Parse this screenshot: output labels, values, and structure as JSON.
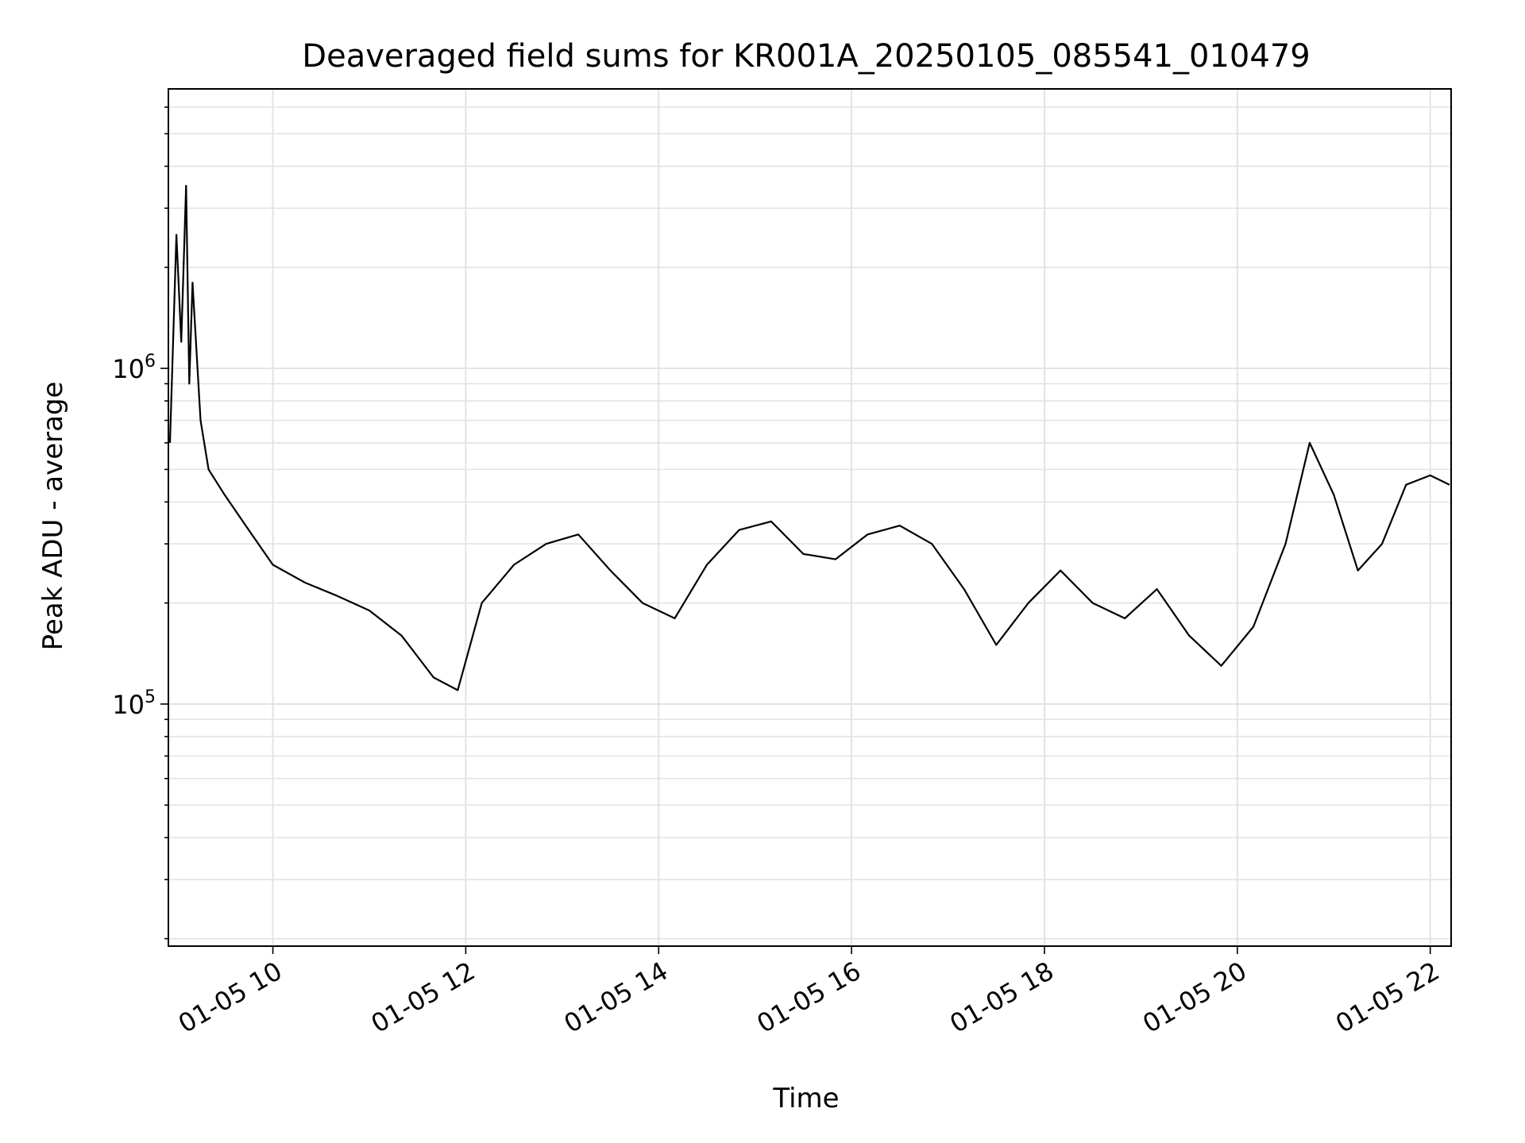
{
  "chart_data": {
    "type": "line",
    "title": "Deaveraged field sums for KR001A_20250105_085541_010479",
    "xlabel": "Time",
    "ylabel": "Peak ADU - average",
    "yscale": "log",
    "ylim": [
      19000,
      6800000
    ],
    "xlim": [
      "2025-01-05 08:55",
      "2025-01-05 22:13"
    ],
    "grid": true,
    "line_color": "#000000",
    "x_ticks": [
      {
        "value": "2025-01-05 10:00",
        "label": "01-05 10"
      },
      {
        "value": "2025-01-05 12:00",
        "label": "01-05 12"
      },
      {
        "value": "2025-01-05 14:00",
        "label": "01-05 14"
      },
      {
        "value": "2025-01-05 16:00",
        "label": "01-05 16"
      },
      {
        "value": "2025-01-05 18:00",
        "label": "01-05 18"
      },
      {
        "value": "2025-01-05 20:00",
        "label": "01-05 20"
      },
      {
        "value": "2025-01-05 22:00",
        "label": "01-05 22"
      }
    ],
    "y_ticks": [
      {
        "value": 100000,
        "base": "10",
        "exp": "5"
      },
      {
        "value": 1000000,
        "base": "10",
        "exp": "6"
      }
    ],
    "series": [
      {
        "points": [
          [
            "2025-01-05 08:56",
            600000
          ],
          [
            "2025-01-05 09:00",
            2500000
          ],
          [
            "2025-01-05 09:03",
            1200000
          ],
          [
            "2025-01-05 09:06",
            3500000
          ],
          [
            "2025-01-05 09:08",
            900000
          ],
          [
            "2025-01-05 09:10",
            1800000
          ],
          [
            "2025-01-05 09:15",
            700000
          ],
          [
            "2025-01-05 09:20",
            500000
          ],
          [
            "2025-01-05 09:30",
            420000
          ],
          [
            "2025-01-05 09:45",
            330000
          ],
          [
            "2025-01-05 10:00",
            260000
          ],
          [
            "2025-01-05 10:20",
            230000
          ],
          [
            "2025-01-05 10:40",
            210000
          ],
          [
            "2025-01-05 11:00",
            190000
          ],
          [
            "2025-01-05 11:20",
            160000
          ],
          [
            "2025-01-05 11:40",
            120000
          ],
          [
            "2025-01-05 11:55",
            110000
          ],
          [
            "2025-01-05 12:10",
            200000
          ],
          [
            "2025-01-05 12:30",
            260000
          ],
          [
            "2025-01-05 12:50",
            300000
          ],
          [
            "2025-01-05 13:10",
            320000
          ],
          [
            "2025-01-05 13:30",
            250000
          ],
          [
            "2025-01-05 13:50",
            200000
          ],
          [
            "2025-01-05 14:10",
            180000
          ],
          [
            "2025-01-05 14:30",
            260000
          ],
          [
            "2025-01-05 14:50",
            330000
          ],
          [
            "2025-01-05 15:10",
            350000
          ],
          [
            "2025-01-05 15:30",
            280000
          ],
          [
            "2025-01-05 15:50",
            270000
          ],
          [
            "2025-01-05 16:10",
            320000
          ],
          [
            "2025-01-05 16:30",
            340000
          ],
          [
            "2025-01-05 16:50",
            300000
          ],
          [
            "2025-01-05 17:10",
            220000
          ],
          [
            "2025-01-05 17:30",
            150000
          ],
          [
            "2025-01-05 17:50",
            200000
          ],
          [
            "2025-01-05 18:10",
            250000
          ],
          [
            "2025-01-05 18:30",
            200000
          ],
          [
            "2025-01-05 18:50",
            180000
          ],
          [
            "2025-01-05 19:10",
            220000
          ],
          [
            "2025-01-05 19:30",
            160000
          ],
          [
            "2025-01-05 19:50",
            130000
          ],
          [
            "2025-01-05 20:10",
            170000
          ],
          [
            "2025-01-05 20:30",
            300000
          ],
          [
            "2025-01-05 20:45",
            600000
          ],
          [
            "2025-01-05 21:00",
            420000
          ],
          [
            "2025-01-05 21:15",
            250000
          ],
          [
            "2025-01-05 21:30",
            300000
          ],
          [
            "2025-01-05 21:45",
            450000
          ],
          [
            "2025-01-05 22:00",
            480000
          ],
          [
            "2025-01-05 22:12",
            450000
          ]
        ]
      }
    ]
  }
}
